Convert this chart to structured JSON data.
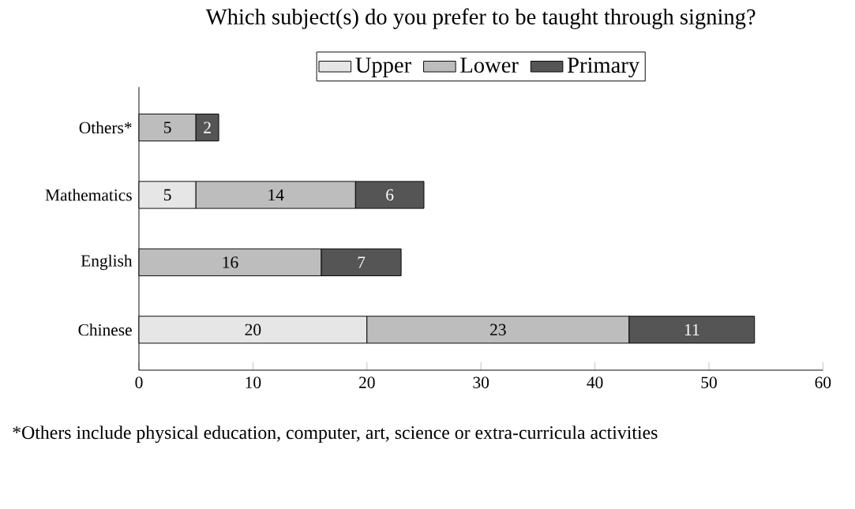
{
  "chart_data": {
    "type": "bar",
    "orientation": "horizontal",
    "stacked": true,
    "title": "Which subject(s) do you prefer to be taught through signing?",
    "categories": [
      "Others*",
      "Mathematics",
      "English",
      "Chinese"
    ],
    "series": [
      {
        "name": "Upper",
        "color": "#e6e6e6",
        "values": [
          null,
          5,
          null,
          20
        ]
      },
      {
        "name": "Lower",
        "color": "#bdbdbd",
        "values": [
          5,
          14,
          16,
          23
        ]
      },
      {
        "name": "Primary",
        "color": "#555555",
        "values": [
          2,
          6,
          7,
          11
        ]
      }
    ],
    "xlim": [
      0,
      60
    ],
    "xticks": [
      0,
      10,
      20,
      30,
      40,
      50,
      60
    ],
    "data_labels": true,
    "legend": "top",
    "grid": false,
    "annotations": [
      "*Others include physical education, computer, art, science or extra-curricula activities"
    ]
  }
}
